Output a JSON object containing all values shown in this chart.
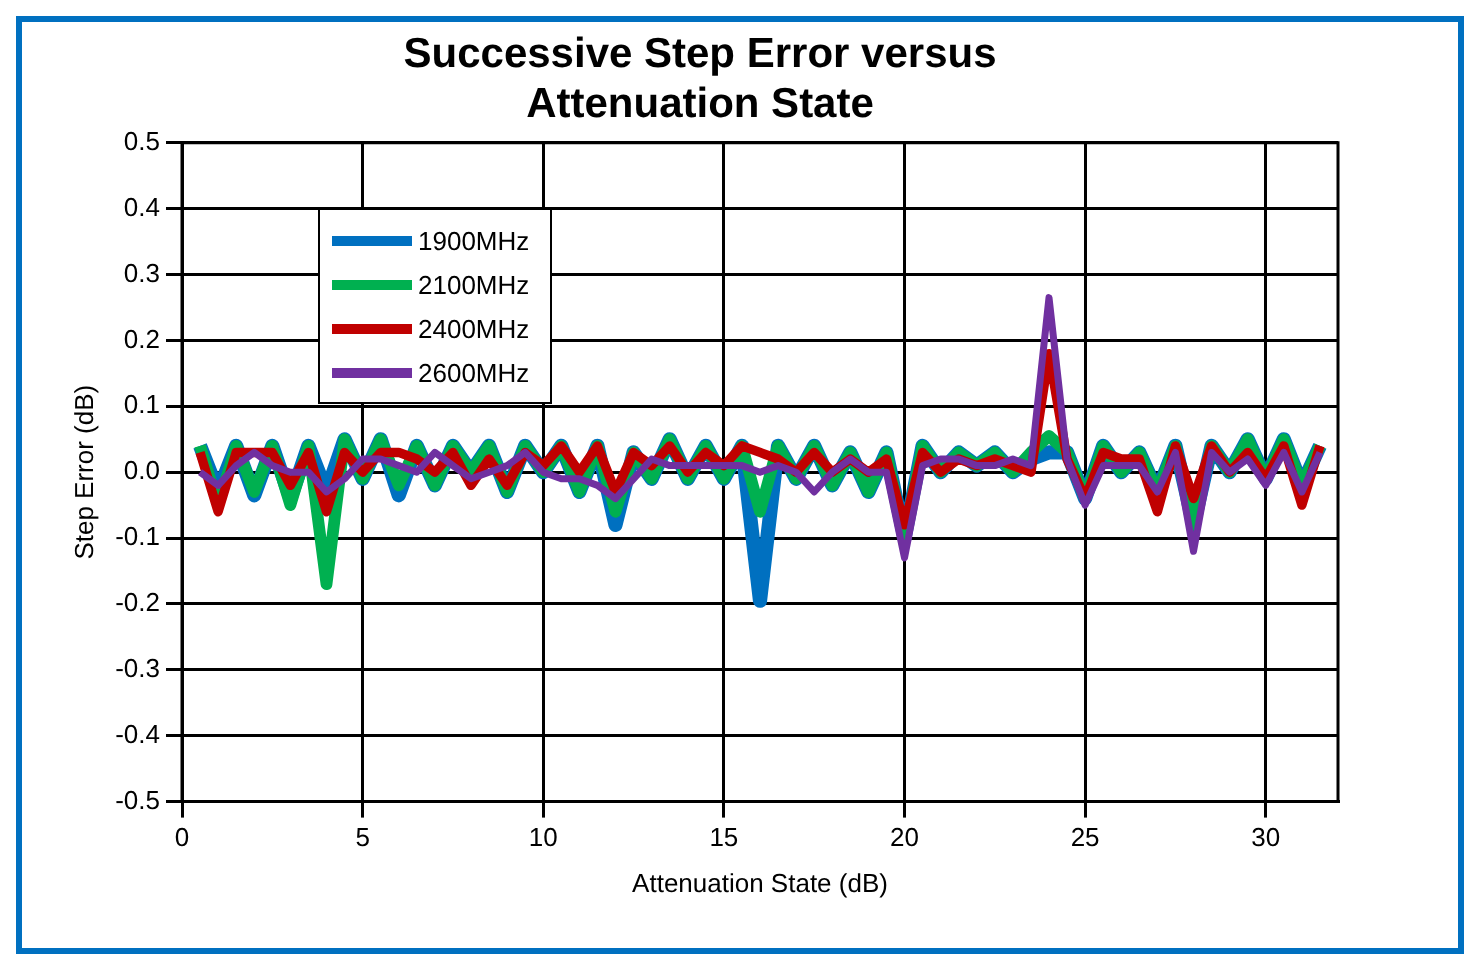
{
  "chart_data": {
    "type": "line",
    "title": "Successive Step Error versus Attenuation State",
    "xlabel": "Attenuation State (dB)",
    "ylabel": "Step Error (dB)",
    "x": [
      0.5,
      1,
      1.5,
      2,
      2.5,
      3,
      3.5,
      4,
      4.5,
      5,
      5.5,
      6,
      6.5,
      7,
      7.5,
      8,
      8.5,
      9,
      9.5,
      10,
      10.5,
      11,
      11.5,
      12,
      12.5,
      13,
      13.5,
      14,
      14.5,
      15,
      15.5,
      16,
      16.5,
      17,
      17.5,
      18,
      18.5,
      19,
      19.5,
      20,
      20.5,
      21,
      21.5,
      22,
      22.5,
      23,
      23.5,
      24,
      24.5,
      25,
      25.5,
      26,
      26.5,
      27,
      27.5,
      28,
      28.5,
      29,
      29.5,
      30,
      30.5,
      31,
      31.5
    ],
    "series": [
      {
        "name": "1900MHz",
        "color": "#0070c0",
        "values": [
          0.04,
          -0.03,
          0.04,
          -0.035,
          0.04,
          -0.04,
          0.04,
          -0.03,
          0.05,
          -0.01,
          0.05,
          -0.035,
          0.04,
          -0.02,
          0.04,
          0.0,
          0.04,
          -0.03,
          0.04,
          0.0,
          0.04,
          -0.03,
          0.04,
          -0.08,
          0.03,
          -0.01,
          0.05,
          -0.01,
          0.04,
          -0.01,
          0.04,
          -0.195,
          0.04,
          -0.01,
          0.04,
          -0.02,
          0.03,
          -0.03,
          0.03,
          -0.1,
          0.04,
          0.0,
          0.03,
          0.01,
          0.03,
          0.0,
          0.02,
          0.03,
          0.03,
          -0.04,
          0.04,
          0.0,
          0.03,
          -0.03,
          0.04,
          -0.08,
          0.04,
          0.0,
          0.05,
          -0.01,
          0.05,
          -0.02,
          0.04
        ]
      },
      {
        "name": "2100MHz",
        "color": "#00b050",
        "values": [
          0.04,
          -0.05,
          0.04,
          -0.03,
          0.04,
          -0.05,
          0.04,
          -0.17,
          0.05,
          -0.01,
          0.05,
          -0.02,
          0.04,
          -0.02,
          0.04,
          0.0,
          0.04,
          -0.03,
          0.04,
          0.0,
          0.04,
          -0.03,
          0.04,
          -0.06,
          0.03,
          -0.01,
          0.05,
          -0.01,
          0.04,
          -0.01,
          0.04,
          -0.06,
          0.04,
          -0.01,
          0.04,
          -0.02,
          0.03,
          -0.03,
          0.03,
          -0.1,
          0.04,
          0.0,
          0.03,
          0.01,
          0.03,
          0.0,
          0.03,
          0.055,
          0.03,
          -0.04,
          0.04,
          0.0,
          0.03,
          -0.03,
          0.04,
          -0.08,
          0.04,
          0.0,
          0.05,
          -0.01,
          0.05,
          -0.02,
          0.04
        ]
      },
      {
        "name": "2400MHz",
        "color": "#c00000",
        "values": [
          0.03,
          -0.06,
          0.03,
          0.03,
          0.03,
          -0.02,
          0.03,
          -0.06,
          0.03,
          0.0,
          0.03,
          0.03,
          0.02,
          0.0,
          0.03,
          -0.02,
          0.02,
          -0.02,
          0.03,
          0.01,
          0.04,
          0.0,
          0.04,
          -0.03,
          0.03,
          0.01,
          0.04,
          0.0,
          0.03,
          0.01,
          0.04,
          0.03,
          0.02,
          0.0,
          0.03,
          0.0,
          0.02,
          0.0,
          0.02,
          -0.08,
          0.03,
          0.0,
          0.02,
          0.01,
          0.02,
          0.01,
          0.0,
          0.18,
          0.02,
          -0.04,
          0.03,
          0.02,
          0.02,
          -0.06,
          0.04,
          -0.04,
          0.04,
          0.0,
          0.03,
          -0.01,
          0.04,
          -0.05,
          0.04
        ]
      },
      {
        "name": "2600MHz",
        "color": "#7030a0",
        "values": [
          0.0,
          -0.02,
          0.01,
          0.03,
          0.01,
          0.0,
          0.0,
          -0.03,
          -0.01,
          0.02,
          0.02,
          0.01,
          0.0,
          0.03,
          0.01,
          -0.01,
          0.0,
          0.01,
          0.03,
          0.0,
          -0.01,
          -0.01,
          -0.02,
          -0.04,
          -0.01,
          0.02,
          0.01,
          0.01,
          0.01,
          0.01,
          0.01,
          0.0,
          0.01,
          0.0,
          -0.03,
          0.0,
          0.02,
          0.0,
          0.0,
          -0.13,
          0.01,
          0.02,
          0.02,
          0.01,
          0.01,
          0.02,
          0.01,
          0.265,
          0.02,
          -0.05,
          0.01,
          0.01,
          0.01,
          -0.03,
          0.03,
          -0.12,
          0.03,
          0.0,
          0.02,
          -0.02,
          0.03,
          -0.03,
          0.03
        ]
      }
    ],
    "xlim": [
      0,
      32
    ],
    "xticks": [
      0,
      5,
      10,
      15,
      20,
      25,
      30
    ],
    "ylim": [
      -0.5,
      0.5
    ],
    "yticks": [
      -0.5,
      -0.4,
      -0.3,
      -0.2,
      -0.1,
      {
        "value": 0,
        "label": "0.0"
      },
      0.1,
      0.2,
      0.3,
      0.4,
      0.5
    ],
    "grid": true,
    "legend": "top left",
    "marker": "none",
    "line_style": "solid"
  }
}
